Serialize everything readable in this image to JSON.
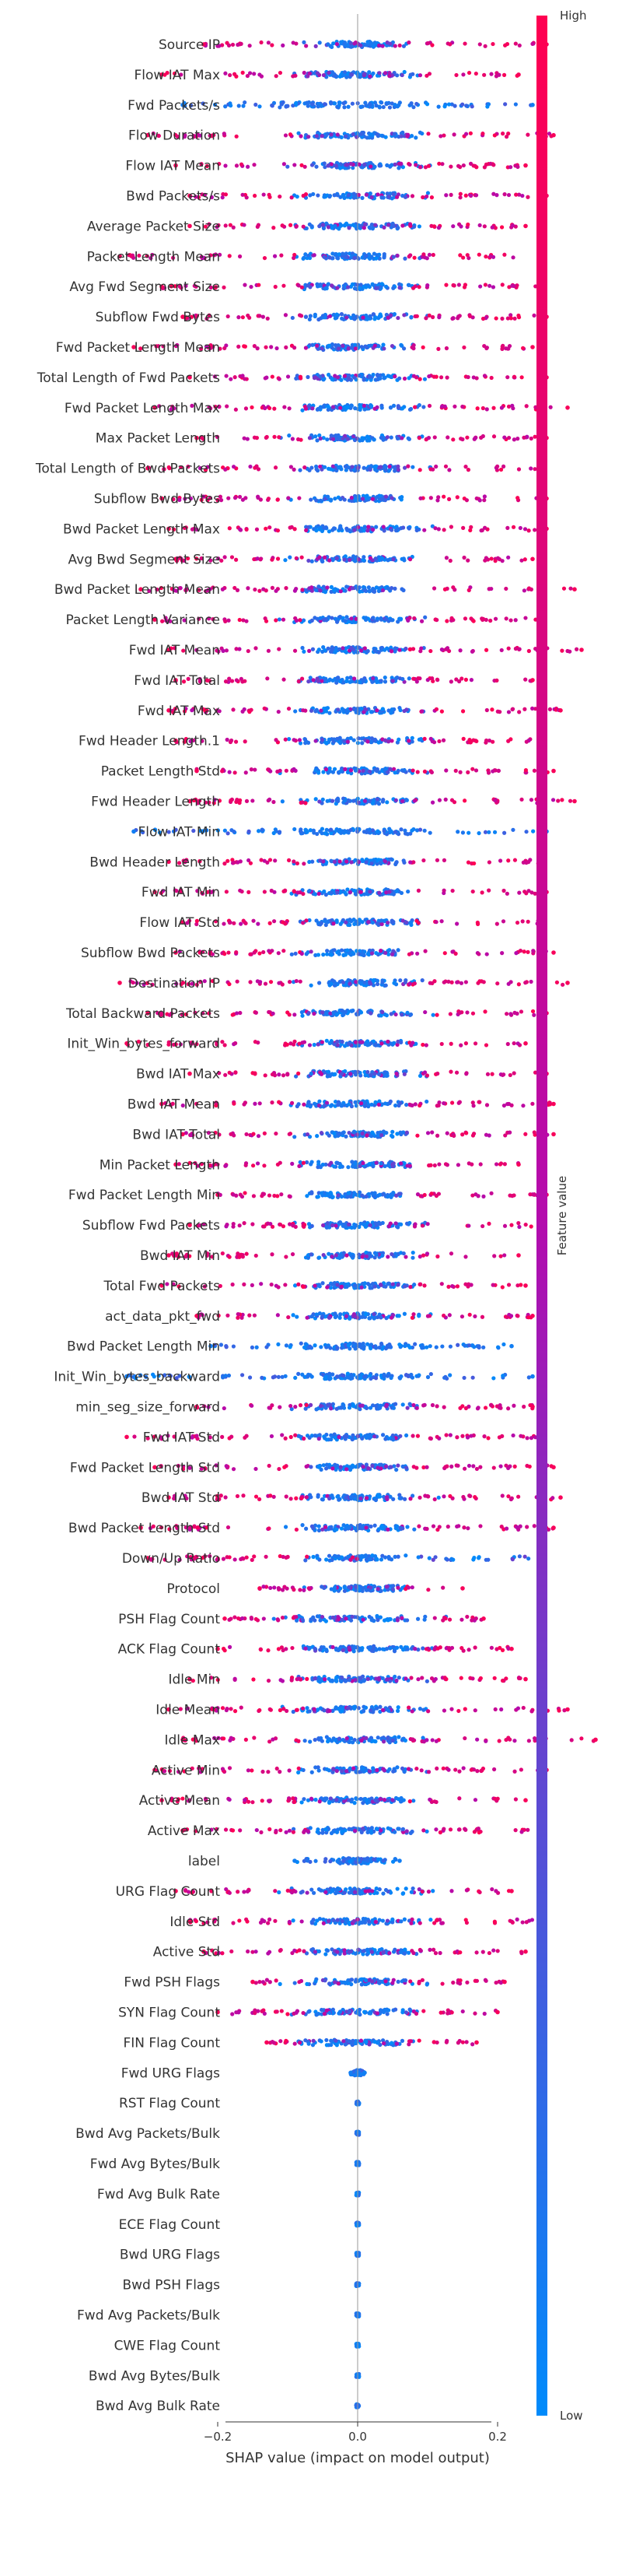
{
  "chart_data": {
    "type": "scatter",
    "subtype": "shap-summary (beeswarm)",
    "title": "",
    "xlabel": "SHAP value (impact on model output)",
    "ylabel": "",
    "xlim": [
      -0.19,
      0.19
    ],
    "x_ticks": [
      -0.2,
      0.0,
      0.2
    ],
    "x_tick_labels": [
      "−0.2",
      "0.0",
      "0.2"
    ],
    "grid": false,
    "colorbar": {
      "label": "Feature value",
      "high_label": "High",
      "low_label": "Low",
      "low_color": "#008bfb",
      "mid_color": "#b40bad",
      "high_color": "#ff0051"
    },
    "zero_line_color": "#999999",
    "features": [
      {
        "name": "Source IP",
        "min": -0.22,
        "max": 0.27,
        "high_side": "both",
        "core": 0.1
      },
      {
        "name": "Flow IAT Max",
        "min": -0.28,
        "max": 0.23,
        "high_side": "both",
        "core": 0.12
      },
      {
        "name": "Fwd Packets/s",
        "min": -0.25,
        "max": 0.25,
        "high_side": "none",
        "core": 0.2
      },
      {
        "name": "Flow Duration",
        "min": -0.3,
        "max": 0.28,
        "high_side": "both",
        "core": 0.12
      },
      {
        "name": "Flow IAT Mean",
        "min": -0.26,
        "max": 0.24,
        "high_side": "both",
        "core": 0.12
      },
      {
        "name": "Bwd Packets/s",
        "min": -0.24,
        "max": 0.27,
        "high_side": "both",
        "core": 0.12
      },
      {
        "name": "Average Packet Size",
        "min": -0.24,
        "max": 0.24,
        "high_side": "both",
        "core": 0.12
      },
      {
        "name": "Packet Length Mean",
        "min": -0.34,
        "max": 0.26,
        "high_side": "both",
        "core": 0.12
      },
      {
        "name": "Avg Fwd Segment Size",
        "min": -0.28,
        "max": 0.26,
        "high_side": "both",
        "core": 0.12
      },
      {
        "name": "Subflow Fwd Bytes",
        "min": -0.25,
        "max": 0.27,
        "high_side": "both",
        "core": 0.12
      },
      {
        "name": "Fwd Packet Length Mean",
        "min": -0.32,
        "max": 0.25,
        "high_side": "both",
        "core": 0.12
      },
      {
        "name": "Total Length of Fwd Packets",
        "min": -0.24,
        "max": 0.27,
        "high_side": "both",
        "core": 0.12
      },
      {
        "name": "Fwd Packet Length Max",
        "min": -0.29,
        "max": 0.3,
        "high_side": "both",
        "core": 0.12
      },
      {
        "name": "Max Packet Length",
        "min": -0.23,
        "max": 0.27,
        "high_side": "both",
        "core": 0.12
      },
      {
        "name": "Total Length of Bwd Packets",
        "min": -0.3,
        "max": 0.26,
        "high_side": "both",
        "core": 0.12
      },
      {
        "name": "Subflow Bwd Bytes",
        "min": -0.28,
        "max": 0.27,
        "high_side": "both",
        "core": 0.12
      },
      {
        "name": "Bwd Packet Length Max",
        "min": -0.27,
        "max": 0.27,
        "high_side": "both",
        "core": 0.12
      },
      {
        "name": "Avg Bwd Segment Size",
        "min": -0.26,
        "max": 0.25,
        "high_side": "both",
        "core": 0.12
      },
      {
        "name": "Bwd Packet Length Mean",
        "min": -0.31,
        "max": 0.31,
        "high_side": "both",
        "core": 0.12
      },
      {
        "name": "Packet Length Variance",
        "min": -0.29,
        "max": 0.26,
        "high_side": "both",
        "core": 0.12
      },
      {
        "name": "Fwd IAT Mean",
        "min": -0.27,
        "max": 0.32,
        "high_side": "both",
        "core": 0.12
      },
      {
        "name": "Fwd IAT Total",
        "min": -0.26,
        "max": 0.25,
        "high_side": "both",
        "core": 0.12
      },
      {
        "name": "Fwd IAT Max",
        "min": -0.27,
        "max": 0.29,
        "high_side": "both",
        "core": 0.12
      },
      {
        "name": "Fwd Header Length.1",
        "min": -0.26,
        "max": 0.26,
        "high_side": "both",
        "core": 0.12
      },
      {
        "name": "Packet Length Std",
        "min": -0.23,
        "max": 0.28,
        "high_side": "both",
        "core": 0.12
      },
      {
        "name": "Fwd Header Length",
        "min": -0.24,
        "max": 0.31,
        "high_side": "both",
        "core": 0.12
      },
      {
        "name": "Flow IAT Min",
        "min": -0.32,
        "max": 0.27,
        "high_side": "none",
        "core": 0.15
      },
      {
        "name": "Bwd Header Length",
        "min": -0.27,
        "max": 0.26,
        "high_side": "both",
        "core": 0.12
      },
      {
        "name": "Fwd IAT Min",
        "min": -0.29,
        "max": 0.27,
        "high_side": "both",
        "core": 0.12
      },
      {
        "name": "Flow IAT Std",
        "min": -0.25,
        "max": 0.26,
        "high_side": "both",
        "core": 0.12
      },
      {
        "name": "Subflow Bwd Packets",
        "min": -0.26,
        "max": 0.28,
        "high_side": "both",
        "core": 0.12
      },
      {
        "name": "Destination IP",
        "min": -0.34,
        "max": 0.3,
        "high_side": "both",
        "core": 0.12
      },
      {
        "name": "Total Backward Packets",
        "min": -0.3,
        "max": 0.27,
        "high_side": "both",
        "core": 0.12
      },
      {
        "name": "Init_Win_bytes_forward",
        "min": -0.33,
        "max": 0.24,
        "high_side": "both",
        "core": 0.12
      },
      {
        "name": "Bwd IAT Max",
        "min": -0.24,
        "max": 0.27,
        "high_side": "both",
        "core": 0.12
      },
      {
        "name": "Bwd IAT Mean",
        "min": -0.28,
        "max": 0.28,
        "high_side": "both",
        "core": 0.12
      },
      {
        "name": "Bwd IAT Total",
        "min": -0.25,
        "max": 0.28,
        "high_side": "both",
        "core": 0.12
      },
      {
        "name": "Min Packet Length",
        "min": -0.26,
        "max": 0.23,
        "high_side": "both",
        "core": 0.12
      },
      {
        "name": "Fwd Packet Length Min",
        "min": -0.2,
        "max": 0.27,
        "high_side": "both",
        "core": 0.12
      },
      {
        "name": "Subflow Fwd Packets",
        "min": -0.24,
        "max": 0.26,
        "high_side": "both",
        "core": 0.12
      },
      {
        "name": "Bwd IAT Min",
        "min": -0.27,
        "max": 0.23,
        "high_side": "both",
        "core": 0.12
      },
      {
        "name": "Total Fwd Packets",
        "min": -0.28,
        "max": 0.24,
        "high_side": "both",
        "core": 0.12
      },
      {
        "name": "act_data_pkt_fwd",
        "min": -0.23,
        "max": 0.25,
        "high_side": "both",
        "core": 0.12
      },
      {
        "name": "Bwd Packet Length Min",
        "min": -0.21,
        "max": 0.22,
        "high_side": "none",
        "core": 0.15
      },
      {
        "name": "Init_Win_bytes_backward",
        "min": -0.33,
        "max": 0.25,
        "high_side": "none",
        "core": 0.15
      },
      {
        "name": "min_seg_size_forward",
        "min": -0.23,
        "max": 0.25,
        "high_side": "both",
        "core": 0.12
      },
      {
        "name": "Fwd IAT Std",
        "min": -0.33,
        "max": 0.26,
        "high_side": "both",
        "core": 0.12
      },
      {
        "name": "Fwd Packet Length Std",
        "min": -0.29,
        "max": 0.28,
        "high_side": "both",
        "core": 0.12
      },
      {
        "name": "Bwd IAT Std",
        "min": -0.27,
        "max": 0.29,
        "high_side": "both",
        "core": 0.12
      },
      {
        "name": "Bwd Packet Length Std",
        "min": -0.31,
        "max": 0.28,
        "high_side": "both",
        "core": 0.12
      },
      {
        "name": "Down/Up Ratio",
        "min": -0.3,
        "max": 0.26,
        "high_side": "low",
        "core": 0.1
      },
      {
        "name": "Protocol",
        "min": -0.14,
        "max": 0.15,
        "high_side": "both",
        "core": 0.1
      },
      {
        "name": "PSH Flag Count",
        "min": -0.19,
        "max": 0.18,
        "high_side": "both",
        "core": 0.15
      },
      {
        "name": "ACK Flag Count",
        "min": -0.2,
        "max": 0.22,
        "high_side": "both",
        "core": 0.15
      },
      {
        "name": "Idle Min",
        "min": -0.24,
        "max": 0.24,
        "high_side": "both",
        "core": 0.12
      },
      {
        "name": "Idle Mean",
        "min": -0.27,
        "max": 0.3,
        "high_side": "both",
        "core": 0.12
      },
      {
        "name": "Idle Max",
        "min": -0.25,
        "max": 0.34,
        "high_side": "both",
        "core": 0.12
      },
      {
        "name": "Active Min",
        "min": -0.29,
        "max": 0.27,
        "high_side": "both",
        "core": 0.12
      },
      {
        "name": "Active Mean",
        "min": -0.28,
        "max": 0.24,
        "high_side": "both",
        "core": 0.12
      },
      {
        "name": "Active Max",
        "min": -0.25,
        "max": 0.26,
        "high_side": "both",
        "core": 0.12
      },
      {
        "name": "label",
        "min": -0.09,
        "max": 0.06,
        "high_side": "none",
        "core": 0.05
      },
      {
        "name": "URG Flag Count",
        "min": -0.26,
        "max": 0.22,
        "high_side": "both",
        "core": 0.15
      },
      {
        "name": "Idle Std",
        "min": -0.24,
        "max": 0.26,
        "high_side": "both",
        "core": 0.12
      },
      {
        "name": "Active Std",
        "min": -0.22,
        "max": 0.24,
        "high_side": "both",
        "core": 0.12
      },
      {
        "name": "Fwd PSH Flags",
        "min": -0.15,
        "max": 0.21,
        "high_side": "both",
        "core": 0.12
      },
      {
        "name": "SYN Flag Count",
        "min": -0.2,
        "max": 0.2,
        "high_side": "both",
        "core": 0.12
      },
      {
        "name": "FIN Flag Count",
        "min": -0.13,
        "max": 0.17,
        "high_side": "both",
        "core": 0.12
      },
      {
        "name": "Fwd URG Flags",
        "min": -0.01,
        "max": 0.01,
        "high_side": "none",
        "core": 0.01
      },
      {
        "name": "RST Flag Count",
        "min": 0.0,
        "max": 0.0,
        "high_side": "none",
        "core": 0.0
      },
      {
        "name": "Bwd Avg Packets/Bulk",
        "min": 0.0,
        "max": 0.0,
        "high_side": "none",
        "core": 0.0
      },
      {
        "name": "Fwd Avg Bytes/Bulk",
        "min": 0.0,
        "max": 0.0,
        "high_side": "none",
        "core": 0.0
      },
      {
        "name": "Fwd Avg Bulk Rate",
        "min": 0.0,
        "max": 0.0,
        "high_side": "none",
        "core": 0.0
      },
      {
        "name": "ECE Flag Count",
        "min": 0.0,
        "max": 0.0,
        "high_side": "none",
        "core": 0.0
      },
      {
        "name": "Bwd URG Flags",
        "min": 0.0,
        "max": 0.0,
        "high_side": "none",
        "core": 0.0
      },
      {
        "name": "Bwd PSH Flags",
        "min": 0.0,
        "max": 0.0,
        "high_side": "none",
        "core": 0.0
      },
      {
        "name": "Fwd Avg Packets/Bulk",
        "min": 0.0,
        "max": 0.0,
        "high_side": "none",
        "core": 0.0
      },
      {
        "name": "CWE Flag Count",
        "min": 0.0,
        "max": 0.0,
        "high_side": "none",
        "core": 0.0
      },
      {
        "name": "Bwd Avg Bytes/Bulk",
        "min": 0.0,
        "max": 0.0,
        "high_side": "none",
        "core": 0.0
      },
      {
        "name": "Bwd Avg Bulk Rate",
        "min": 0.0,
        "max": 0.0,
        "high_side": "none",
        "core": 0.0
      }
    ]
  }
}
